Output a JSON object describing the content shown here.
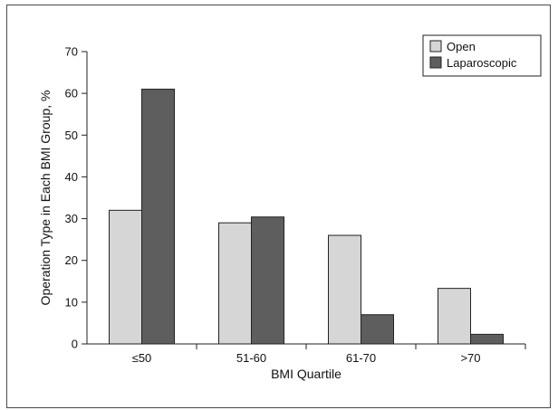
{
  "chart_data": {
    "type": "bar",
    "title": "",
    "xlabel": "BMI Quartile",
    "ylabel": "Operation Type in Each BMI Group, %",
    "categories": [
      "≤50",
      "51-60",
      "61-70",
      ">70"
    ],
    "series": [
      {
        "name": "Open",
        "values": [
          32,
          29,
          26,
          13.3
        ],
        "color": "#d6d6d6"
      },
      {
        "name": "Laparoscopic",
        "values": [
          61,
          30.4,
          7,
          2.3
        ],
        "color": "#5e5e5e"
      }
    ],
    "ylim": [
      0,
      70
    ],
    "yticks": [
      0,
      10,
      20,
      30,
      40,
      50,
      60,
      70
    ],
    "grid": false,
    "legend_position": "top-right"
  }
}
